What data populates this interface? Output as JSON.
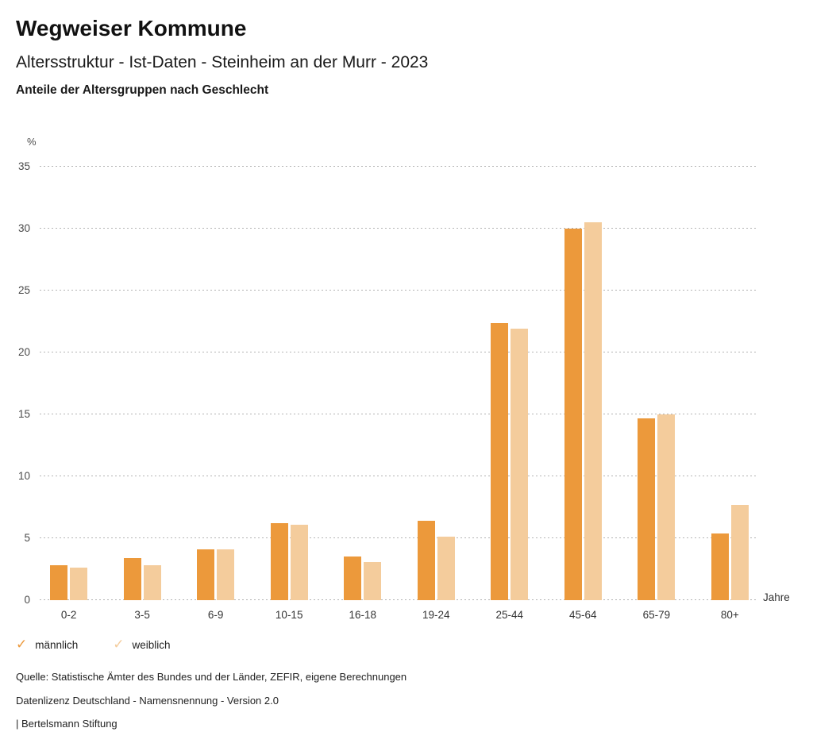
{
  "header": {
    "title": "Wegweiser Kommune",
    "subtitle": "Altersstruktur - Ist-Daten - Steinheim an der Murr - 2023",
    "caption": "Anteile der Altersgruppen nach Geschlecht"
  },
  "chart_data": {
    "type": "bar",
    "title": "Anteile der Altersgruppen nach Geschlecht",
    "xlabel": "Jahre",
    "ylabel": "%",
    "categories": [
      "0-2",
      "3-5",
      "6-9",
      "10-15",
      "16-18",
      "19-24",
      "25-44",
      "45-64",
      "65-79",
      "80+"
    ],
    "series": [
      {
        "name": "männlich",
        "color": "#EC993B",
        "values": [
          2.8,
          3.4,
          4.1,
          6.2,
          3.5,
          6.4,
          22.4,
          30.0,
          14.7,
          5.4
        ]
      },
      {
        "name": "weiblich",
        "color": "#F4CC9C",
        "values": [
          2.6,
          2.8,
          4.1,
          6.1,
          3.1,
          5.1,
          21.9,
          30.5,
          15.0,
          7.7
        ]
      }
    ],
    "ylim": [
      0,
      35
    ],
    "yticks": [
      0,
      5,
      10,
      15,
      20,
      25,
      30,
      35
    ],
    "grid": "horizontal-dotted",
    "legend_position": "bottom-left"
  },
  "legend": [
    {
      "label": "männlich",
      "color": "#EC993B",
      "check_icon": "✓"
    },
    {
      "label": "weiblich",
      "color": "#F4CC9C",
      "check_icon": "✓"
    }
  ],
  "footer": {
    "source": "Quelle: Statistische Ämter des Bundes und der Länder, ZEFIR, eigene Berechnungen",
    "license": "Datenlizenz Deutschland - Namensnennung - Version 2.0",
    "attribution": "| Bertelsmann Stiftung"
  }
}
